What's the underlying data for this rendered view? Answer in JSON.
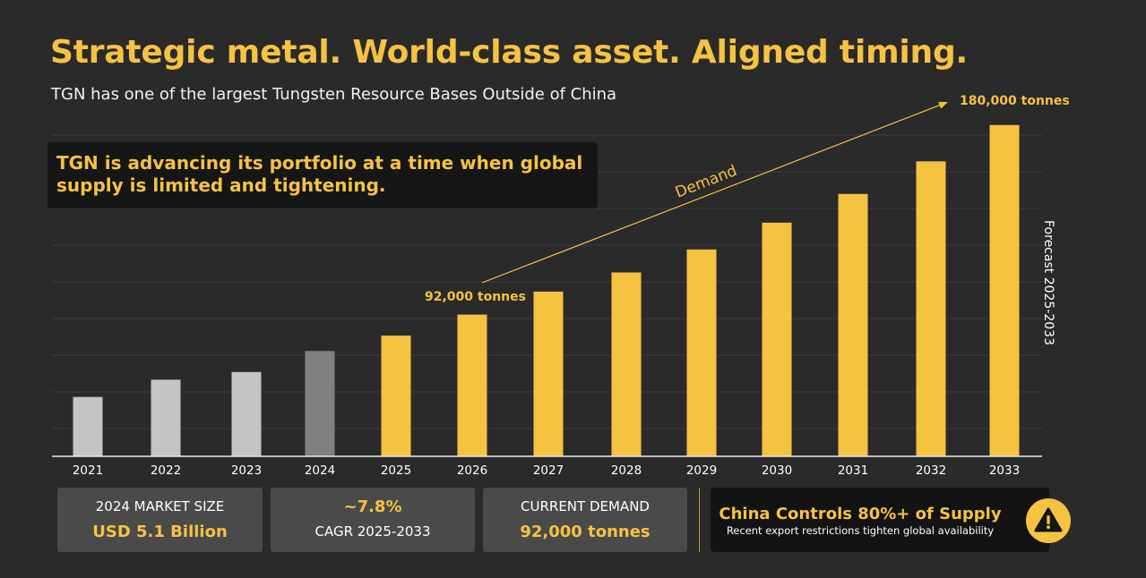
{
  "header": {
    "title": "Strategic metal. World-class asset. Aligned timing.",
    "subtitle": "TGN has one of the largest Tungsten Resource Bases Outside of China"
  },
  "callout": {
    "line1": "TGN is advancing its portfolio at a time when global",
    "line2": "supply is limited and tightening."
  },
  "chart_data": {
    "type": "bar",
    "categories": [
      "2021",
      "2022",
      "2023",
      "2024",
      "2025",
      "2026",
      "2027",
      "2028",
      "2029",
      "2030",
      "2031",
      "2032",
      "2033"
    ],
    "values": [
      31,
      40,
      44,
      55,
      63,
      74,
      86,
      96,
      108,
      122,
      137,
      154,
      173
    ],
    "value_unit": "relative index (y-axis unlabeled)",
    "ylim": [
      0,
      185
    ],
    "grid": true,
    "bar_groups": {
      "historical": [
        "2021",
        "2022",
        "2023"
      ],
      "current": [
        "2024"
      ],
      "forecast": [
        "2025",
        "2026",
        "2027",
        "2028",
        "2029",
        "2030",
        "2031",
        "2032",
        "2033"
      ]
    },
    "colors": {
      "historical": "#c4c4c4",
      "current": "#808080",
      "forecast": "#f5c242",
      "grid": "#3f3e3f",
      "axis": "#e8e8e8",
      "tick_text": "#ffffff"
    },
    "annotations": {
      "start_label": "92,000 tonnes",
      "end_label": "180,000 tonnes",
      "trend_label": "Demand",
      "forecast_label": "Forecast 2025-2033"
    }
  },
  "stats": {
    "market_size": {
      "label": "2024 MARKET SIZE",
      "value": "USD 5.1 Billion"
    },
    "cagr": {
      "value": "~7.8%",
      "label": "CAGR 2025-2033"
    },
    "demand": {
      "label": "CURRENT DEMAND",
      "value": "92,000 tonnes"
    }
  },
  "alert": {
    "title": "China Controls 80%+ of Supply",
    "text": "Recent export restrictions tighten global availability",
    "icon": "warning-icon"
  }
}
